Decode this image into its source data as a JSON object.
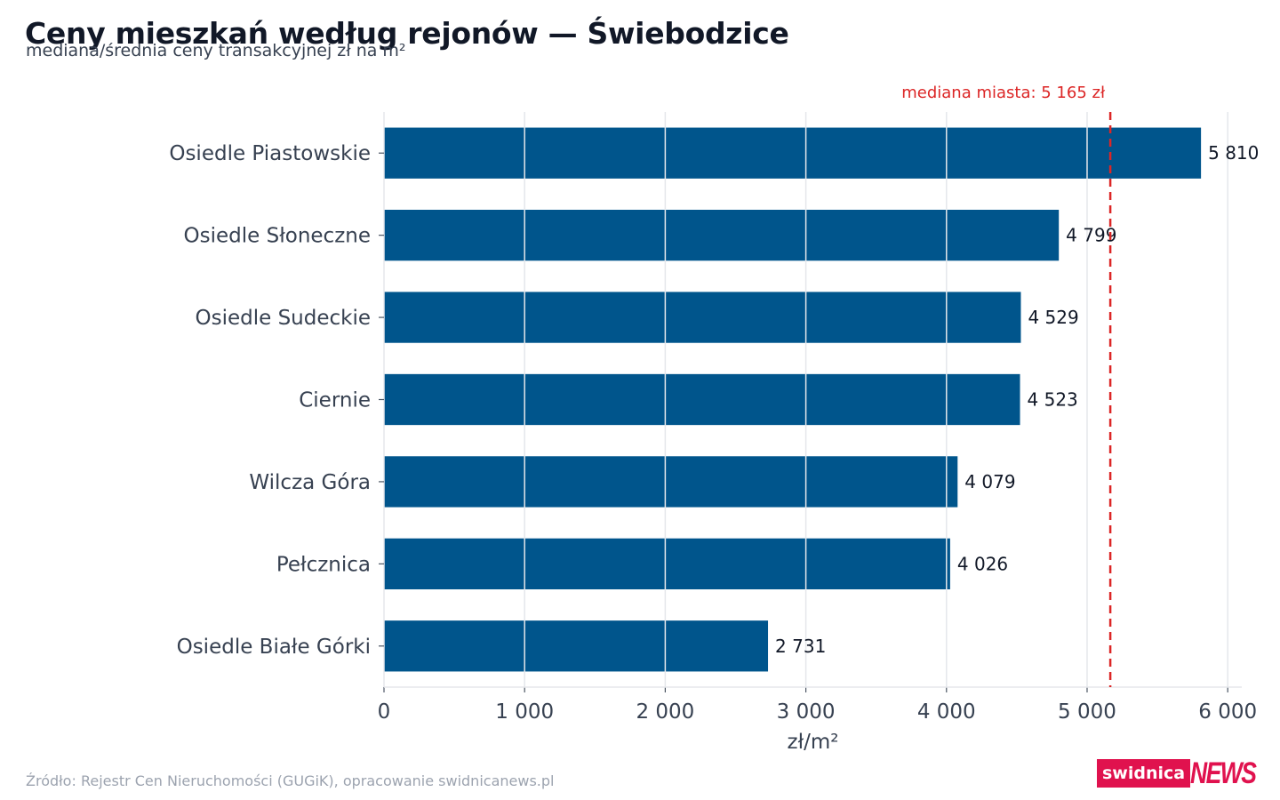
{
  "title": "Ceny mieszkań według rejonów — Świebodzice",
  "subtitle": "mediana/średnia ceny transakcyjnej zł na m²",
  "source": "Źródło: Rejestr Cen Nieruchomości (GUGiK), opracowanie swidnicanews.pl",
  "brand": {
    "part1": "swidnica",
    "part2": "NEWS",
    "color": "#e0124e"
  },
  "colors": {
    "bar": "#00558c",
    "median_line": "#dc2626",
    "grid": "#e5e7eb"
  },
  "chart_data": {
    "type": "bar",
    "orientation": "horizontal",
    "categories": [
      "Osiedle Piastowskie",
      "Osiedle Słoneczne",
      "Osiedle Sudeckie",
      "Ciernie",
      "Wilcza Góra",
      "Pełcznica",
      "Osiedle Białe Górki"
    ],
    "values": [
      5810,
      4799,
      4529,
      4523,
      4079,
      4026,
      2731
    ],
    "value_labels": [
      "5 810",
      "4 799",
      "4 529",
      "4 523",
      "4 079",
      "4 026",
      "2 731"
    ],
    "xlabel": "zł/m²",
    "xlim": [
      0,
      6100
    ],
    "xticks": [
      0,
      1000,
      2000,
      3000,
      4000,
      5000,
      6000
    ],
    "xtick_labels": [
      "0",
      "1 000",
      "2 000",
      "3 000",
      "4 000",
      "5 000",
      "6 000"
    ],
    "grid": true,
    "reference_line": {
      "value": 5165,
      "label": "mediana miasta: 5 165 zł",
      "style": "dashed"
    }
  }
}
